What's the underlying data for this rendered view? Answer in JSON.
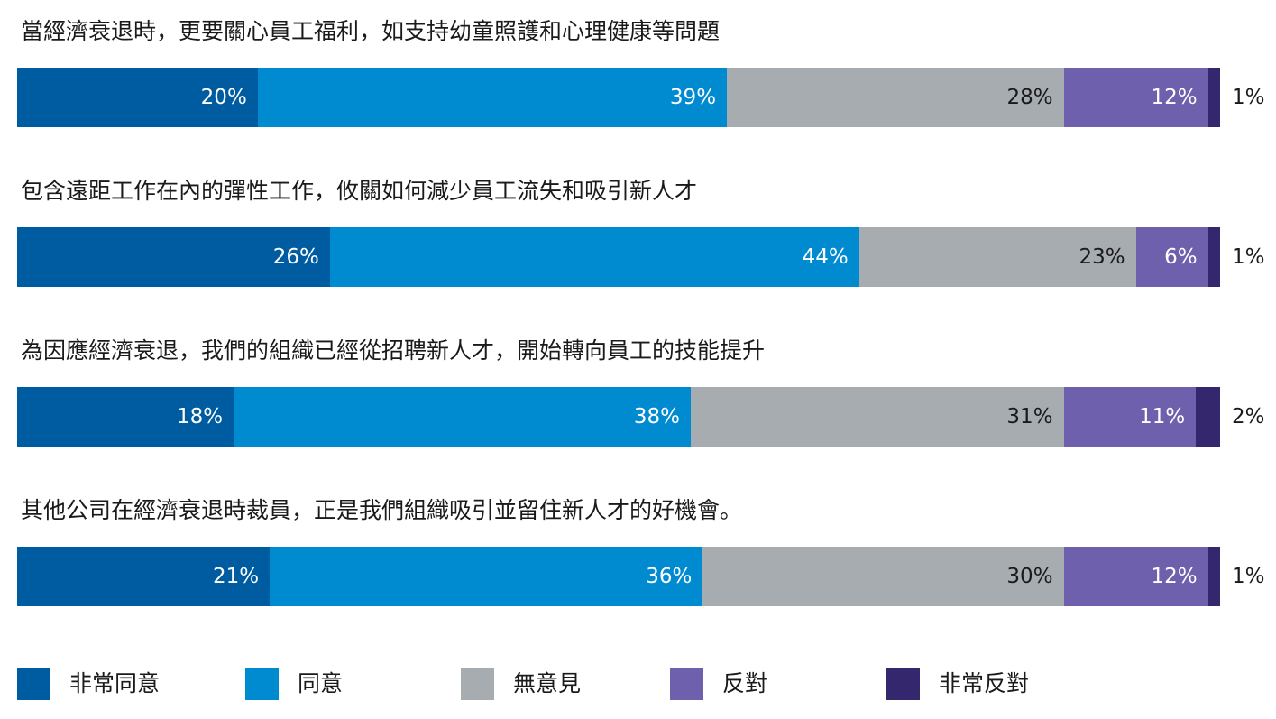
{
  "chart_data": {
    "type": "bar",
    "orientation": "horizontal",
    "stacked": true,
    "normalized_percent": true,
    "categories": [
      "當經濟衰退時，更要關心員工福利，如支持幼童照護和心理健康等問題",
      "包含遠距工作在內的彈性工作，攸關如何減少員工流失和吸引新人才",
      "為因應經濟衰退，我們的組織已經從招聘新人才，開始轉向員工的技能提升",
      "其他公司在經濟衰退時裁員，正是我們組織吸引並留住新人才的好機會。"
    ],
    "series": [
      {
        "name": "非常同意",
        "color": "#005CA0",
        "label_color": "#ffffff",
        "values": [
          20,
          26,
          18,
          21
        ]
      },
      {
        "name": "同意",
        "color": "#008AD0",
        "label_color": "#ffffff",
        "values": [
          39,
          44,
          38,
          36
        ]
      },
      {
        "name": "無意見",
        "color": "#A7ACB1",
        "label_color": "#1a1a1a",
        "values": [
          28,
          23,
          31,
          30
        ]
      },
      {
        "name": "反對",
        "color": "#6E60AC",
        "label_color": "#ffffff",
        "values": [
          12,
          6,
          11,
          12
        ]
      },
      {
        "name": "非常反對",
        "color": "#34276E",
        "label_color": "#1a1a1a",
        "values": [
          1,
          1,
          2,
          1
        ]
      }
    ],
    "value_suffix": "%",
    "legend_position": "bottom",
    "title": "",
    "xlabel": "",
    "ylabel": ""
  }
}
